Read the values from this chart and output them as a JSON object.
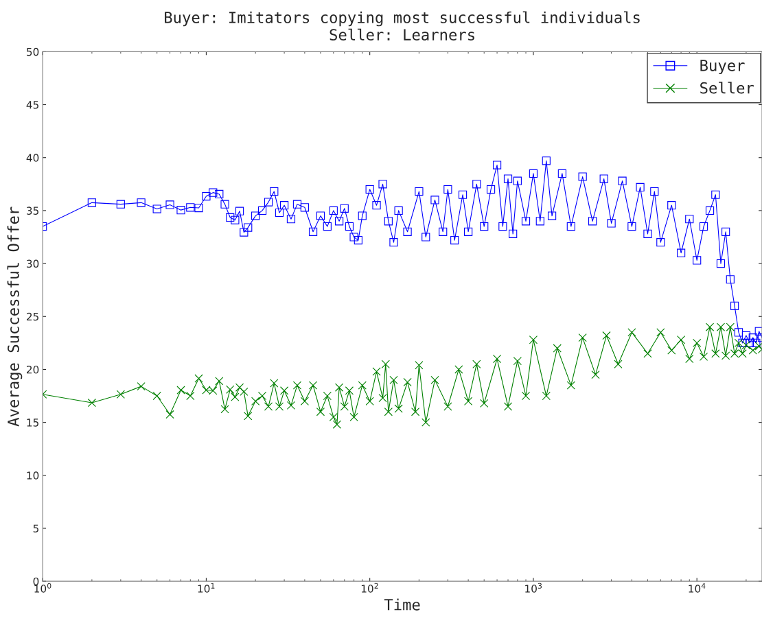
{
  "chart_data": {
    "type": "line",
    "title": "Buyer: Imitators copying most successful individuals",
    "subtitle": "Seller: Learners",
    "xlabel": "Time",
    "ylabel": "Average Successful Offer",
    "log": "x",
    "xlim": [
      1,
      25000
    ],
    "xticks": [
      {
        "value": 1,
        "label": "10$^{0}$"
      },
      {
        "value": 10,
        "label": "10$^{1}$"
      },
      {
        "value": 100,
        "label": "10$^{2}$"
      },
      {
        "value": 1000,
        "label": "10$^{3}$"
      },
      {
        "value": 10000,
        "label": "10$^{4}$"
      }
    ],
    "ylim": [
      0,
      50
    ],
    "yticks": [
      0,
      5,
      10,
      15,
      20,
      25,
      30,
      35,
      40,
      45,
      50
    ],
    "grid": false,
    "legend": "top right",
    "series": [
      {
        "name": "Buyer",
        "color": "#0000ff",
        "marker": "square",
        "x": [
          1,
          2,
          3,
          4,
          5,
          6,
          7,
          8,
          9,
          10,
          11,
          12,
          13,
          14,
          15,
          16,
          17,
          18,
          20,
          22,
          24,
          26,
          28,
          30,
          33,
          36,
          40,
          45,
          50,
          55,
          60,
          65,
          70,
          75,
          80,
          85,
          90,
          100,
          110,
          120,
          130,
          140,
          150,
          170,
          200,
          220,
          250,
          280,
          300,
          330,
          370,
          400,
          450,
          500,
          550,
          600,
          650,
          700,
          750,
          800,
          900,
          1000,
          1100,
          1200,
          1300,
          1500,
          1700,
          2000,
          2300,
          2700,
          3000,
          3500,
          4000,
          4500,
          5000,
          5500,
          6000,
          7000,
          8000,
          9000,
          10000,
          11000,
          12000,
          13000,
          14000,
          15000,
          16000,
          17000,
          18000,
          19000,
          20000,
          21000,
          22000,
          23000,
          24000,
          25000
        ],
        "values": [
          33.5,
          35.75,
          35.6,
          35.75,
          35.15,
          35.55,
          35.05,
          35.3,
          35.25,
          36.35,
          36.7,
          36.55,
          35.6,
          34.35,
          34.1,
          34.95,
          32.95,
          33.4,
          34.5,
          35.0,
          35.8,
          36.8,
          34.8,
          35.5,
          34.2,
          35.6,
          35.3,
          33.0,
          34.5,
          33.5,
          35.0,
          34.0,
          35.2,
          33.5,
          32.5,
          32.2,
          34.5,
          37.0,
          35.5,
          37.5,
          34.0,
          32.0,
          35.0,
          33.0,
          36.8,
          32.5,
          36.0,
          33.0,
          37.0,
          32.2,
          36.5,
          33.0,
          37.5,
          33.5,
          37.0,
          39.3,
          33.5,
          38.0,
          32.8,
          37.8,
          34.0,
          38.5,
          34.0,
          39.7,
          34.5,
          38.5,
          33.5,
          38.2,
          34.0,
          38.0,
          33.8,
          37.8,
          33.5,
          37.2,
          32.8,
          36.8,
          32.0,
          35.5,
          31.0,
          34.2,
          30.3,
          33.5,
          35.0,
          36.5,
          30.0,
          33.0,
          28.5,
          26.0,
          23.5,
          22.5,
          23.2,
          22.5,
          23.0,
          22.5,
          23.6,
          23.0
        ]
      },
      {
        "name": "Seller",
        "color": "#008000",
        "marker": "cross",
        "x": [
          1,
          2,
          3,
          4,
          5,
          6,
          7,
          8,
          9,
          10,
          11,
          12,
          13,
          14,
          15,
          16,
          17,
          18,
          20,
          22,
          24,
          26,
          28,
          30,
          33,
          36,
          40,
          45,
          50,
          55,
          60,
          63,
          65,
          70,
          75,
          80,
          90,
          100,
          110,
          120,
          125,
          130,
          140,
          150,
          170,
          190,
          200,
          220,
          250,
          300,
          350,
          400,
          450,
          500,
          600,
          700,
          800,
          900,
          1000,
          1200,
          1400,
          1700,
          2000,
          2400,
          2800,
          3300,
          4000,
          5000,
          6000,
          7000,
          8000,
          9000,
          10000,
          11000,
          12000,
          13000,
          14000,
          15000,
          16000,
          17000,
          18000,
          19000,
          20000,
          22000,
          24000,
          25000
        ],
        "values": [
          17.65,
          16.85,
          17.65,
          18.4,
          17.5,
          15.75,
          18.05,
          17.5,
          19.15,
          18.05,
          18.0,
          18.9,
          16.25,
          18.1,
          17.4,
          18.3,
          17.9,
          15.6,
          17.0,
          17.5,
          16.5,
          18.7,
          16.5,
          18.0,
          16.6,
          18.5,
          17.0,
          18.5,
          16.0,
          17.5,
          15.5,
          14.8,
          18.3,
          16.5,
          18.0,
          15.5,
          18.5,
          17.0,
          19.8,
          17.3,
          20.5,
          16.0,
          19.0,
          16.3,
          18.8,
          16.0,
          20.4,
          15.0,
          19.0,
          16.5,
          20.0,
          17.0,
          20.5,
          16.8,
          21.0,
          16.5,
          20.8,
          17.5,
          22.8,
          17.5,
          22.0,
          18.5,
          23.0,
          19.5,
          23.2,
          20.5,
          23.5,
          21.5,
          23.5,
          21.8,
          22.8,
          21.0,
          22.5,
          21.2,
          24.0,
          21.5,
          24.0,
          21.3,
          24.0,
          21.5,
          22.5,
          21.5,
          22.3,
          21.8,
          22.2,
          21.9
        ]
      }
    ]
  }
}
